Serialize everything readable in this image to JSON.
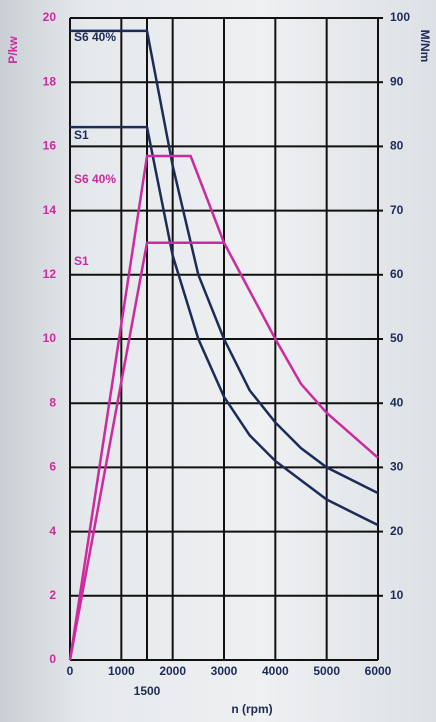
{
  "chart_data": {
    "type": "line",
    "y_label": "P/kw",
    "y2_label": "M/Nm",
    "x_label": "n (rpm)",
    "xlim": [
      0,
      6000
    ],
    "xticks": [
      0,
      1000,
      1500,
      2000,
      3000,
      4000,
      5000,
      6000
    ],
    "ylim": [
      0,
      20
    ],
    "yticks": [
      0,
      2,
      4,
      6,
      8,
      10,
      12,
      14,
      16,
      18,
      20
    ],
    "y2lim": [
      0,
      100
    ],
    "y2ticks": [
      10,
      20,
      30,
      40,
      50,
      60,
      70,
      80,
      90,
      100
    ],
    "grid": true,
    "series": [
      {
        "name": "S6 40%",
        "color": "#1c2b58",
        "axis": "y2",
        "x": [
          0,
          1500,
          2000,
          2500,
          3000,
          3500,
          4000,
          4500,
          5000,
          5500,
          6000
        ],
        "values": [
          98,
          98,
          77,
          60,
          50,
          42,
          37,
          33,
          30,
          28,
          26
        ]
      },
      {
        "name": "S1",
        "color": "#1c2b58",
        "axis": "y2",
        "x": [
          0,
          1500,
          2000,
          2500,
          3000,
          3500,
          4000,
          4500,
          5000,
          5500,
          6000
        ],
        "values": [
          83,
          83,
          63,
          50,
          41,
          35,
          31,
          28,
          25,
          23,
          21
        ]
      },
      {
        "name": "S6 40%",
        "color": "#cc2a9e",
        "x": [
          0,
          1500,
          2350,
          3000
        ],
        "values": [
          0,
          15.7,
          15.7,
          13
        ]
      },
      {
        "name": "S1",
        "color": "#cc2a9e",
        "x": [
          0,
          1500,
          3000,
          3500,
          4000,
          4500,
          5000,
          5500,
          6000
        ],
        "values": [
          0,
          13,
          13,
          11.5,
          10,
          8.6,
          7.7,
          7,
          6.3
        ]
      }
    ]
  }
}
